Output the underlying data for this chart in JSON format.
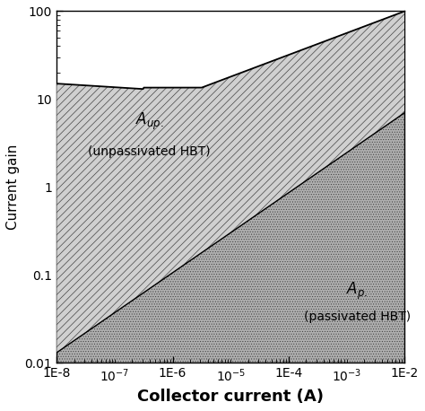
{
  "xlabel": "Collector current (A)",
  "ylabel": "Current gain",
  "yticks": [
    0.01,
    0.1,
    1,
    10,
    100
  ],
  "ytick_labels": [
    "0.01",
    "0.1",
    "1",
    "10",
    "100"
  ],
  "xticks": [
    1e-08,
    1e-06,
    0.0001,
    0.01
  ],
  "xtick_labels": [
    "1E-8",
    "1E-6",
    "1E-4",
    "1E-2"
  ],
  "label_aup": "$Aup.$",
  "label_aup_sub": "(unpassivated HBT)",
  "label_ap": "$Ap.$",
  "label_ap_sub": "(passivated HBT)",
  "bg_color": "#ffffff",
  "xlabel_fontsize": 13,
  "ylabel_fontsize": 11,
  "tick_fontsize": 10,
  "annot_fontsize": 12
}
